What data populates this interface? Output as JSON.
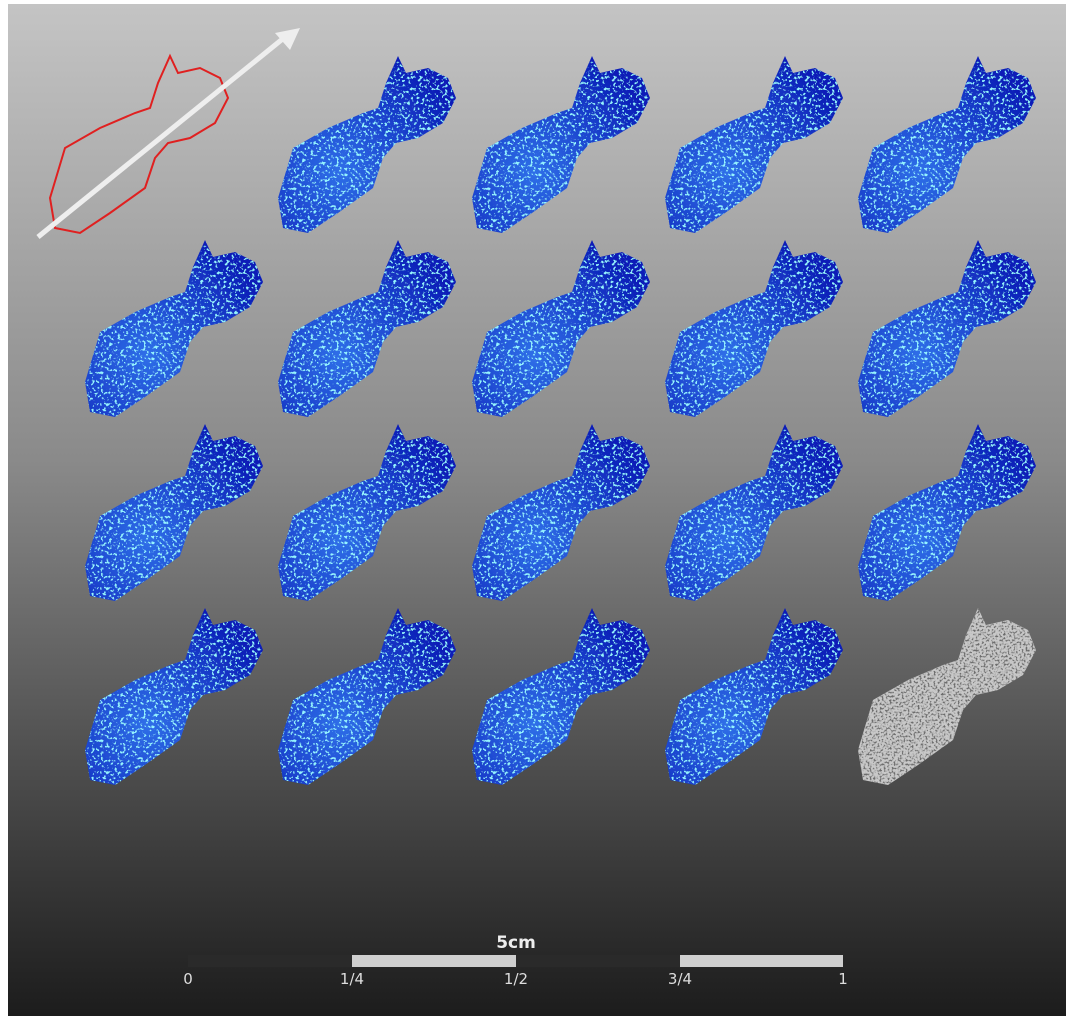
{
  "scale_bar": {
    "title": "5cm",
    "labels": [
      "0",
      "1/4",
      "1/2",
      "3/4",
      "1"
    ]
  }
}
